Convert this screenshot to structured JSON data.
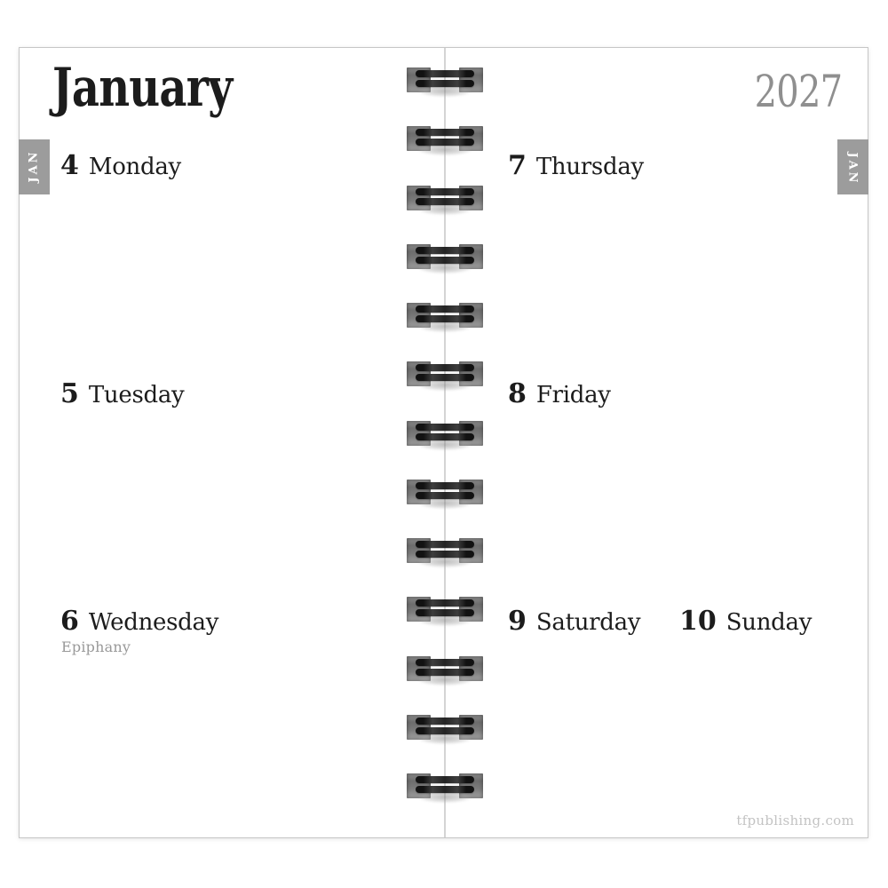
{
  "header": {
    "month": "January",
    "year": "2027",
    "tab_label": "JAN"
  },
  "entries": [
    {
      "day": "4",
      "name": "Monday",
      "holiday": "",
      "col": "left",
      "row": 0
    },
    {
      "day": "5",
      "name": "Tuesday",
      "holiday": "",
      "col": "left",
      "row": 1
    },
    {
      "day": "6",
      "name": "Wednesday",
      "holiday": "Epiphany",
      "col": "left",
      "row": 2
    },
    {
      "day": "7",
      "name": "Thursday",
      "holiday": "",
      "col": "right",
      "row": 0
    },
    {
      "day": "8",
      "name": "Friday",
      "holiday": "",
      "col": "right",
      "row": 1
    },
    {
      "day": "9",
      "name": "Saturday",
      "holiday": "",
      "col": "right",
      "row": 2
    },
    {
      "day": "10",
      "name": "Sunday",
      "holiday": "",
      "col": "right2",
      "row": 2
    }
  ],
  "binding": {
    "coil_count": 13
  },
  "footer": {
    "url": "tfpublishing.com"
  },
  "colors": {
    "text": "#1c1c1c",
    "year_gray": "#8f8f8f",
    "tab_gray": "#9c9c9c",
    "tab_text": "#ffffff",
    "holiday_gray": "#999999",
    "footer_gray": "#c3c3c3",
    "seam_gray": "#d4d4d4",
    "page_border": "#c6c6c6"
  }
}
